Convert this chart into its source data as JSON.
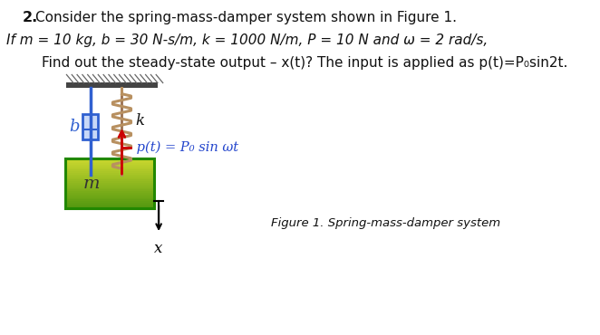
{
  "title_num": "2.",
  "title_text": "  Consider the spring-mass-damper system shown in Figure 1.",
  "line2": "If m = 10 kg, b = 30 N-s/m, k = 1000 N/m, P = 10 N and ω = 2 rad/s,",
  "line3a": "        Find out the steady-state output – x(t)? The input is applied as ",
  "line3b": "p(t)=P₀sin2t.",
  "figure_caption": "Figure 1. Spring-mass-damper system",
  "label_b": "b",
  "label_k": "k",
  "label_m": "m",
  "label_x": "x",
  "label_pt": " p(t) = P₀ sin ωt",
  "bg_color": "#ffffff",
  "mass_fill": "#c8d830",
  "mass_edge": "#228800",
  "damper_blue": "#3060d0",
  "spring_color": "#b89060",
  "ceiling_color": "#444444",
  "arrow_red": "#cc0000",
  "label_blue": "#2244cc",
  "text_black": "#111111"
}
